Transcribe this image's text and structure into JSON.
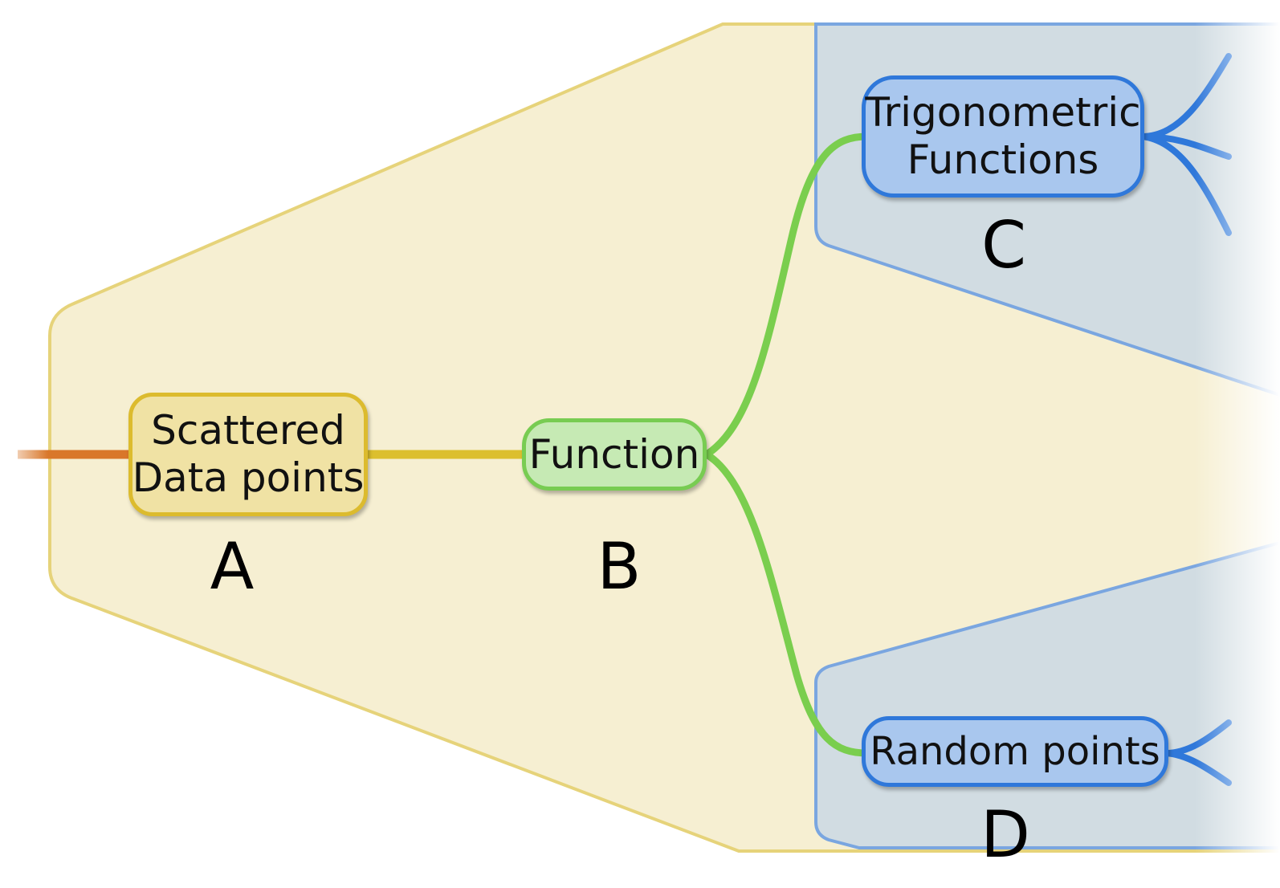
{
  "diagram": {
    "nodes": {
      "a": {
        "lines": [
          "Scattered",
          "Data points"
        ],
        "label": "A"
      },
      "b": {
        "lines": [
          "Function"
        ],
        "label": "B"
      },
      "c": {
        "lines": [
          "Trigonometric",
          "Functions"
        ],
        "label": "C"
      },
      "d": {
        "lines": [
          "Random points"
        ],
        "label": "D"
      }
    },
    "edges": [
      {
        "from": "incoming",
        "to": "a"
      },
      {
        "from": "a",
        "to": "b"
      },
      {
        "from": "b",
        "to": "c"
      },
      {
        "from": "b",
        "to": "d"
      },
      {
        "from": "c",
        "to": "offscreen"
      },
      {
        "from": "d",
        "to": "offscreen"
      }
    ]
  },
  "colors": {
    "boundary_fill": "#f6efd2",
    "boundary_stroke": "#e6d37a",
    "sub_boundary_fill": "#d1dce2",
    "sub_boundary_stroke": "#7aa6e0",
    "incoming_edge": "#d9772a",
    "edge_a_b": "#dcbf2e",
    "edge_b_children": "#7ace4e",
    "edge_offscreen": "#2f78da"
  }
}
